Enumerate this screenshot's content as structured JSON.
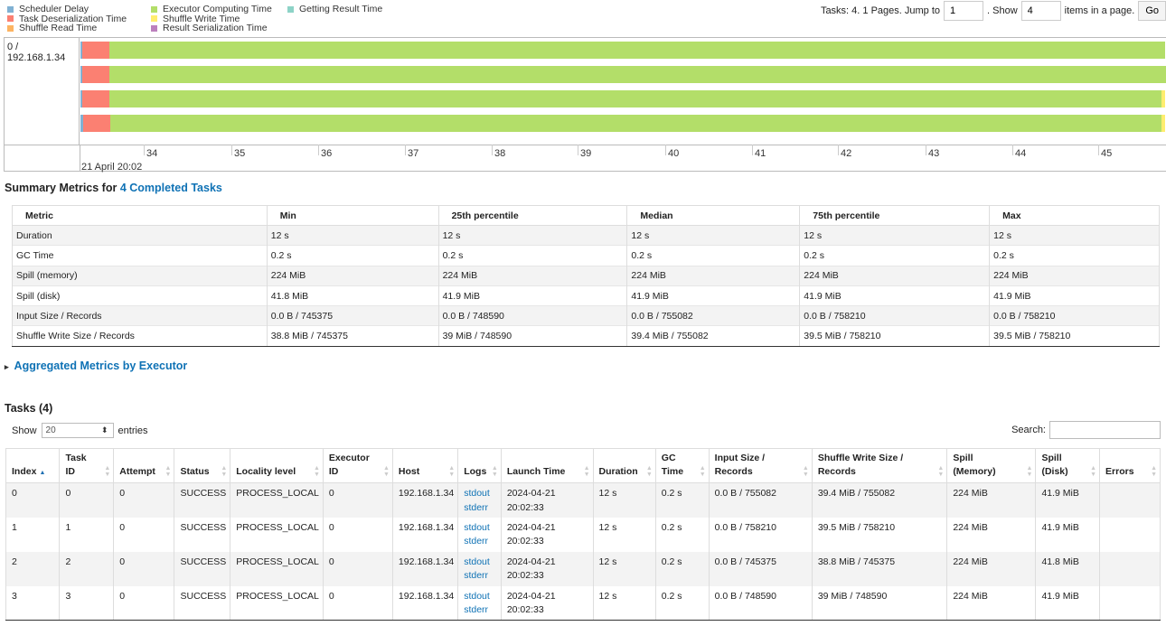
{
  "legend": {
    "items": [
      {
        "label": "Scheduler Delay",
        "color": "#80b1d3"
      },
      {
        "label": "Task Deserialization Time",
        "color": "#fb8072"
      },
      {
        "label": "Shuffle Read Time",
        "color": "#fdb462"
      },
      {
        "label": "Executor Computing Time",
        "color": "#b3de69"
      },
      {
        "label": "Shuffle Write Time",
        "color": "#ffed6f"
      },
      {
        "label": "Result Serialization Time",
        "color": "#bc80bd"
      },
      {
        "label": "Getting Result Time",
        "color": "#8dd3c7"
      }
    ]
  },
  "pager": {
    "prefix": "Tasks: 4. 1 Pages. Jump to",
    "page_value": "1",
    "show_label": ". Show",
    "show_value": "4",
    "suffix": "items in a page.",
    "go_label": "Go"
  },
  "timeline": {
    "executor_label": "0 / 192.168.1.34",
    "ticks": [
      "34",
      "35",
      "36",
      "37",
      "38",
      "39",
      "40",
      "41",
      "42",
      "43",
      "44",
      "45"
    ],
    "date_label": "21 April 20:02"
  },
  "summary": {
    "title_prefix": "Summary Metrics for",
    "title_link": "4 Completed Tasks",
    "headers": [
      "Metric",
      "Min",
      "25th percentile",
      "Median",
      "75th percentile",
      "Max"
    ],
    "rows": [
      [
        "Duration",
        "12 s",
        "12 s",
        "12 s",
        "12 s",
        "12 s"
      ],
      [
        "GC Time",
        "0.2 s",
        "0.2 s",
        "0.2 s",
        "0.2 s",
        "0.2 s"
      ],
      [
        "Spill (memory)",
        "224 MiB",
        "224 MiB",
        "224 MiB",
        "224 MiB",
        "224 MiB"
      ],
      [
        "Spill (disk)",
        "41.8 MiB",
        "41.9 MiB",
        "41.9 MiB",
        "41.9 MiB",
        "41.9 MiB"
      ],
      [
        "Input Size / Records",
        "0.0 B / 745375",
        "0.0 B / 748590",
        "0.0 B / 755082",
        "0.0 B / 758210",
        "0.0 B / 758210"
      ],
      [
        "Shuffle Write Size / Records",
        "38.8 MiB / 745375",
        "39 MiB / 748590",
        "39.4 MiB / 755082",
        "39.5 MiB / 758210",
        "39.5 MiB / 758210"
      ]
    ]
  },
  "aggregated": {
    "label": "Aggregated Metrics by Executor",
    "arrow": "▸"
  },
  "tasks": {
    "title": "Tasks (4)",
    "show_label": "Show",
    "entries_value": "20",
    "entries_label": "entries",
    "search_label": "Search:",
    "headers": [
      [
        "Index",
        ""
      ],
      [
        "Task",
        "ID"
      ],
      [
        "Attempt",
        ""
      ],
      [
        "Status",
        ""
      ],
      [
        "Locality level",
        ""
      ],
      [
        "Executor",
        "ID"
      ],
      [
        "Host",
        ""
      ],
      [
        "Logs",
        ""
      ],
      [
        "Launch Time",
        ""
      ],
      [
        "Duration",
        ""
      ],
      [
        "GC",
        "Time"
      ],
      [
        "Input Size /",
        "Records"
      ],
      [
        "Shuffle Write Size /",
        "Records"
      ],
      [
        "Spill",
        "(Memory)"
      ],
      [
        "Spill",
        "(Disk)"
      ],
      [
        "Errors",
        ""
      ]
    ],
    "rows": [
      {
        "index": "0",
        "task_id": "0",
        "attempt": "0",
        "status": "SUCCESS",
        "locality": "PROCESS_LOCAL",
        "executor": "0",
        "host": "192.168.1.34",
        "log1": "stdout",
        "log2": "stderr",
        "launch1": "2024-04-21",
        "launch2": "20:02:33",
        "duration": "12 s",
        "gc": "0.2 s",
        "input": "0.0 B / 755082",
        "shuffle": "39.4 MiB / 755082",
        "spill_mem": "224 MiB",
        "spill_disk": "41.9 MiB",
        "errors": ""
      },
      {
        "index": "1",
        "task_id": "1",
        "attempt": "0",
        "status": "SUCCESS",
        "locality": "PROCESS_LOCAL",
        "executor": "0",
        "host": "192.168.1.34",
        "log1": "stdout",
        "log2": "stderr",
        "launch1": "2024-04-21",
        "launch2": "20:02:33",
        "duration": "12 s",
        "gc": "0.2 s",
        "input": "0.0 B / 758210",
        "shuffle": "39.5 MiB / 758210",
        "spill_mem": "224 MiB",
        "spill_disk": "41.9 MiB",
        "errors": ""
      },
      {
        "index": "2",
        "task_id": "2",
        "attempt": "0",
        "status": "SUCCESS",
        "locality": "PROCESS_LOCAL",
        "executor": "0",
        "host": "192.168.1.34",
        "log1": "stdout",
        "log2": "stderr",
        "launch1": "2024-04-21",
        "launch2": "20:02:33",
        "duration": "12 s",
        "gc": "0.2 s",
        "input": "0.0 B / 745375",
        "shuffle": "38.8 MiB / 745375",
        "spill_mem": "224 MiB",
        "spill_disk": "41.8 MiB",
        "errors": ""
      },
      {
        "index": "3",
        "task_id": "3",
        "attempt": "0",
        "status": "SUCCESS",
        "locality": "PROCESS_LOCAL",
        "executor": "0",
        "host": "192.168.1.34",
        "log1": "stdout",
        "log2": "stderr",
        "launch1": "2024-04-21",
        "launch2": "20:02:33",
        "duration": "12 s",
        "gc": "0.2 s",
        "input": "0.0 B / 748590",
        "shuffle": "39 MiB / 748590",
        "spill_mem": "224 MiB",
        "spill_disk": "41.9 MiB",
        "errors": ""
      }
    ]
  }
}
